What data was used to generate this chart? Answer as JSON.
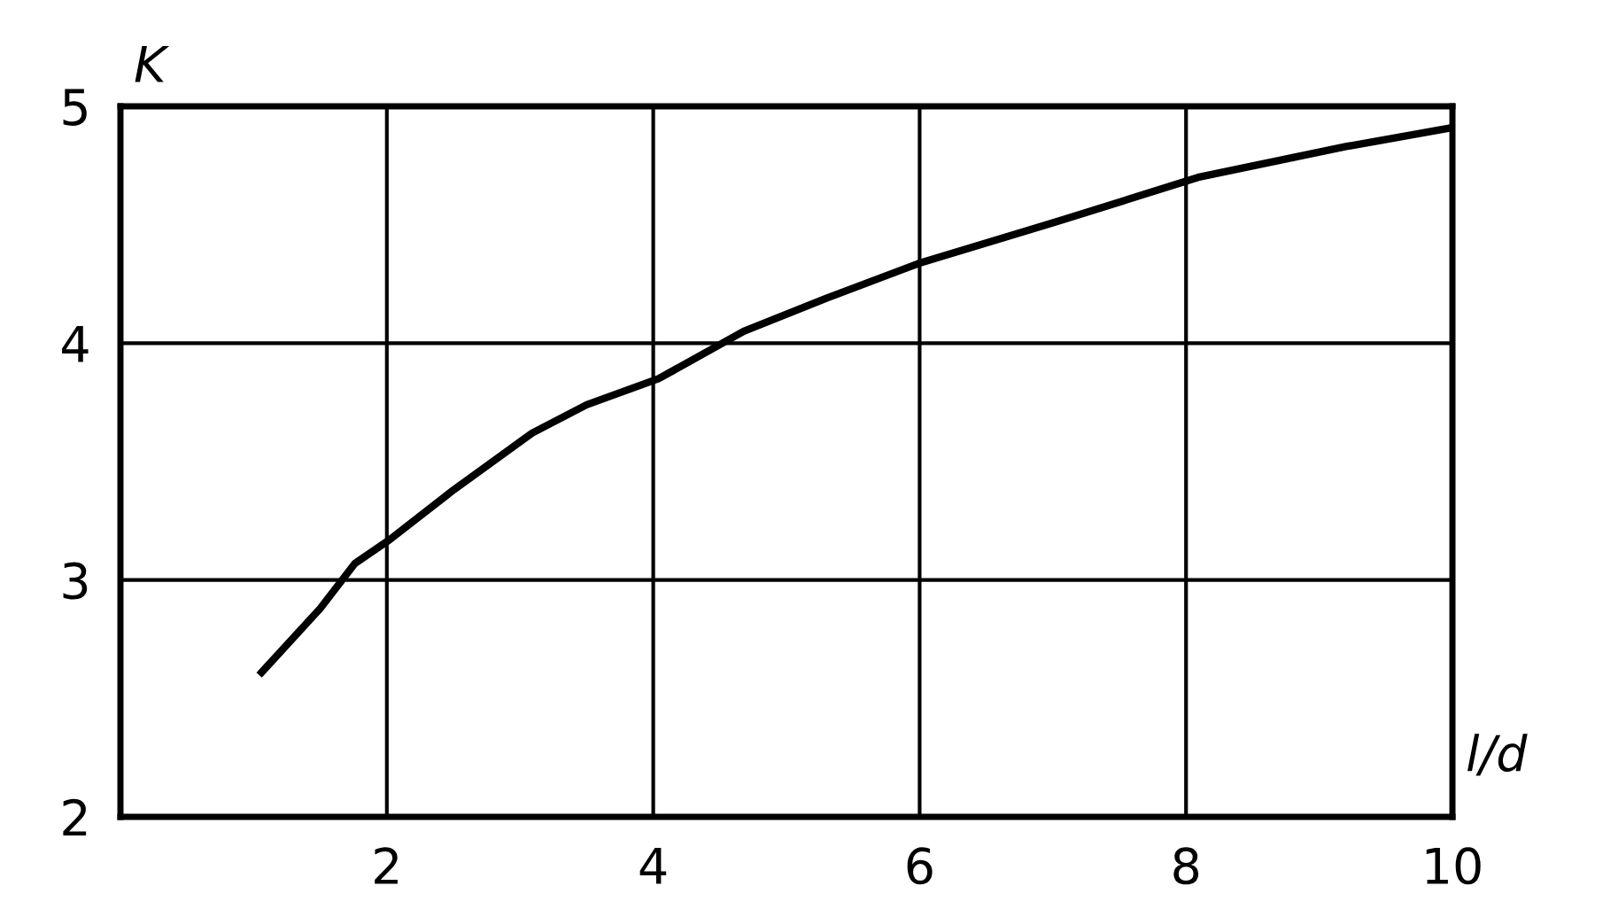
{
  "chart_data": {
    "type": "line",
    "xlabel": "l/d",
    "ylabel": "K",
    "x": [
      1.06,
      1.5,
      1.76,
      2.02,
      2.5,
      3.09,
      3.5,
      4.04,
      4.68,
      5.3,
      6.01,
      7.07,
      8.09,
      9.2,
      10
    ],
    "series": [
      {
        "color": "#000000",
        "values": [
          2.61,
          2.88,
          3.07,
          3.17,
          3.38,
          3.62,
          3.74,
          3.85,
          4.05,
          4.19,
          4.34,
          4.52,
          4.7,
          4.83,
          4.91
        ]
      }
    ],
    "xlim": [
      0,
      10
    ],
    "ylim": [
      2,
      5
    ],
    "xticks": [
      {
        "value": 0,
        "label": null
      },
      2,
      4,
      6,
      8,
      10
    ],
    "yticks": [
      2,
      3,
      4,
      5
    ],
    "grid": true,
    "marker": "none",
    "line_style": "solid"
  }
}
